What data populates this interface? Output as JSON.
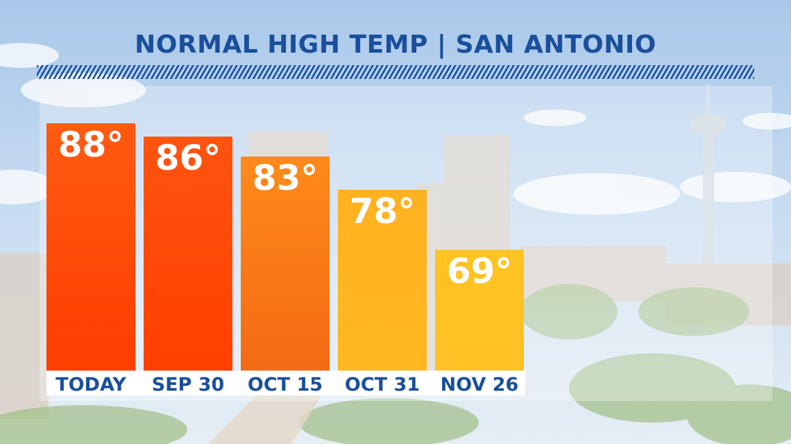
{
  "chart_data": {
    "type": "bar",
    "title": "NORMAL HIGH TEMP | SAN ANTONIO",
    "categories": [
      "TODAY",
      "SEP 30",
      "OCT 15",
      "OCT 31",
      "NOV 26"
    ],
    "values": [
      88,
      86,
      83,
      78,
      69
    ],
    "value_labels": [
      "88°",
      "86°",
      "83°",
      "78°",
      "69°"
    ],
    "xlabel": "",
    "ylabel": "",
    "grid": false,
    "legend": "none",
    "colors": {
      "bar_gradients": [
        [
          "#ff5a12",
          "#ff3d00"
        ],
        [
          "#ff5410",
          "#ff3f00"
        ],
        [
          "#ff8a1a",
          "#f46a14"
        ],
        [
          "#ffb220",
          "#ffb81f"
        ],
        [
          "#ffc322",
          "#ffc124"
        ]
      ],
      "title": "#1a4f9c",
      "hatch": "#1a4f9c",
      "category_label": "#1a4f9c",
      "value_label": "#ffffff"
    }
  }
}
